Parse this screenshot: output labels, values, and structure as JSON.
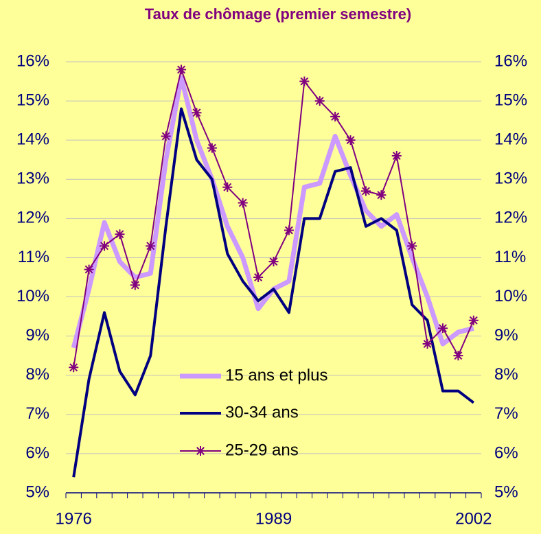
{
  "chart_data": {
    "type": "line",
    "title": "Taux de chômage (premier semestre)",
    "categories": [
      "1976",
      null,
      null,
      null,
      null,
      null,
      null,
      null,
      null,
      null,
      null,
      null,
      null,
      "1989",
      null,
      null,
      null,
      null,
      null,
      null,
      null,
      null,
      null,
      null,
      null,
      null,
      "2002"
    ],
    "series": [
      {
        "name": "15 ans et plus",
        "color": "#cc99ff",
        "width": 7,
        "marker": "none",
        "values": [
          8.7,
          10.2,
          11.9,
          10.9,
          10.5,
          10.6,
          13.5,
          15.6,
          14.0,
          13.0,
          11.8,
          11.0,
          9.7,
          10.2,
          10.4,
          12.8,
          12.9,
          14.1,
          13.1,
          12.2,
          11.8,
          12.1,
          11.0,
          10.0,
          8.8,
          9.1,
          9.2
        ]
      },
      {
        "name": "30-34 ans",
        "color": "#000080",
        "width": 4,
        "marker": "none",
        "values": [
          5.4,
          7.9,
          9.6,
          8.1,
          7.5,
          8.5,
          11.8,
          14.8,
          13.5,
          13.0,
          11.1,
          10.4,
          9.9,
          10.2,
          9.6,
          12.0,
          12.0,
          13.2,
          13.3,
          11.8,
          12.0,
          11.7,
          9.8,
          9.4,
          7.6,
          7.6,
          7.3
        ]
      },
      {
        "name": "25-29 ans",
        "color": "#800080",
        "width": 2,
        "marker": "star",
        "values": [
          8.2,
          10.7,
          11.3,
          11.6,
          10.3,
          11.3,
          14.1,
          15.8,
          14.7,
          13.8,
          12.8,
          12.4,
          10.5,
          10.9,
          11.7,
          15.5,
          15.0,
          14.6,
          14.0,
          12.7,
          12.6,
          13.6,
          11.3,
          8.8,
          9.2,
          8.5,
          9.4
        ]
      }
    ],
    "ylim": [
      5,
      16
    ],
    "yticks": [
      {
        "value": 5,
        "label": "5%"
      },
      {
        "value": 6,
        "label": "6%"
      },
      {
        "value": 7,
        "label": "7%"
      },
      {
        "value": 8,
        "label": "8%"
      },
      {
        "value": 9,
        "label": "9%"
      },
      {
        "value": 10,
        "label": "10%"
      },
      {
        "value": 11,
        "label": "11%"
      },
      {
        "value": 12,
        "label": "12%"
      },
      {
        "value": 13,
        "label": "13%"
      },
      {
        "value": 14,
        "label": "14%"
      },
      {
        "value": 15,
        "label": "15%"
      },
      {
        "value": 16,
        "label": "16%"
      }
    ],
    "y2lim": [
      5,
      16
    ],
    "y2ticks": [
      {
        "value": 5,
        "label": "5%"
      },
      {
        "value": 6,
        "label": "6%"
      },
      {
        "value": 7,
        "label": "7%"
      },
      {
        "value": 8,
        "label": "8%"
      },
      {
        "value": 9,
        "label": "9%"
      },
      {
        "value": 10,
        "label": "10%"
      },
      {
        "value": 11,
        "label": "11%"
      },
      {
        "value": 12,
        "label": "12%"
      },
      {
        "value": 13,
        "label": "13%"
      },
      {
        "value": 14,
        "label": "14%"
      },
      {
        "value": 15,
        "label": "15%"
      },
      {
        "value": 16,
        "label": "16%"
      }
    ],
    "grid": true
  }
}
